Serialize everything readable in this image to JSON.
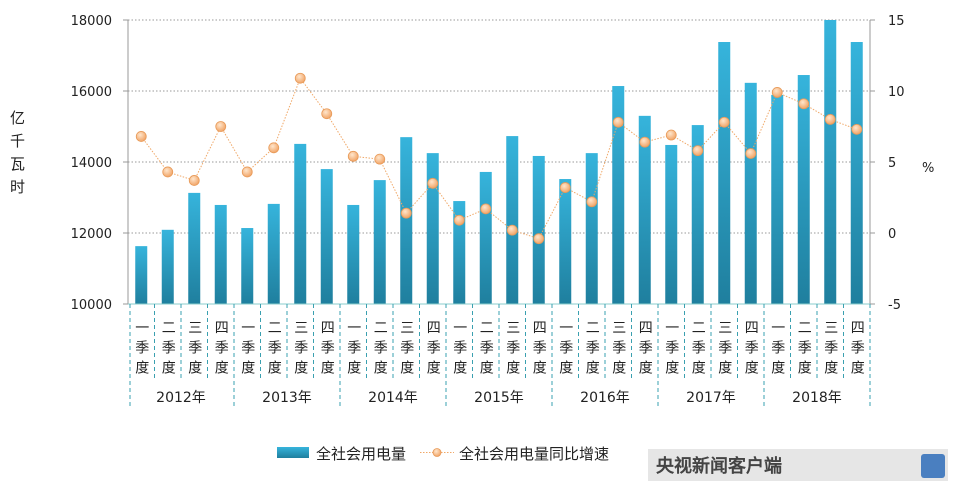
{
  "chart_data": {
    "type": "bar+line",
    "left_axis": {
      "label": "亿千瓦时",
      "range": [
        10000,
        18000
      ],
      "ticks": [
        "10000",
        "12000",
        "14000",
        "16000",
        "18000"
      ]
    },
    "right_axis": {
      "label": "%",
      "range": [
        -5,
        15
      ],
      "ticks": [
        "-5",
        "0",
        "5",
        "10",
        "15"
      ]
    },
    "grid": "horizontal dotted",
    "legend_placement": "bottom",
    "quarters": [
      "一季度",
      "二季度",
      "三季度",
      "四季度"
    ],
    "years": [
      "2012年",
      "2013年",
      "2014年",
      "2015年",
      "2016年",
      "2017年",
      "2018年"
    ],
    "series": [
      {
        "name": "全社会用电量",
        "type": "bar",
        "axis": "left",
        "color": "#2aa3c9",
        "values": [
          11630,
          12090,
          13130,
          12790,
          12140,
          12820,
          14510,
          13800,
          12790,
          13490,
          14700,
          14250,
          12900,
          13720,
          14730,
          14170,
          13520,
          14250,
          16140,
          15300,
          14480,
          15040,
          17380,
          16230,
          15890,
          16450,
          18000,
          17380
        ]
      },
      {
        "name": "全社会用电量同比增速",
        "type": "line",
        "axis": "right",
        "color": "#f0a868",
        "values": [
          6.8,
          4.3,
          3.7,
          7.5,
          4.3,
          6.0,
          10.9,
          8.4,
          5.4,
          5.2,
          1.4,
          3.5,
          0.9,
          1.7,
          0.2,
          -0.4,
          3.2,
          2.2,
          7.8,
          6.4,
          6.9,
          5.8,
          7.8,
          5.6,
          9.9,
          9.1,
          8.0,
          7.3
        ]
      }
    ]
  },
  "watermark": {
    "text": "央视新闻客户端",
    "badge": "央视新闻"
  }
}
